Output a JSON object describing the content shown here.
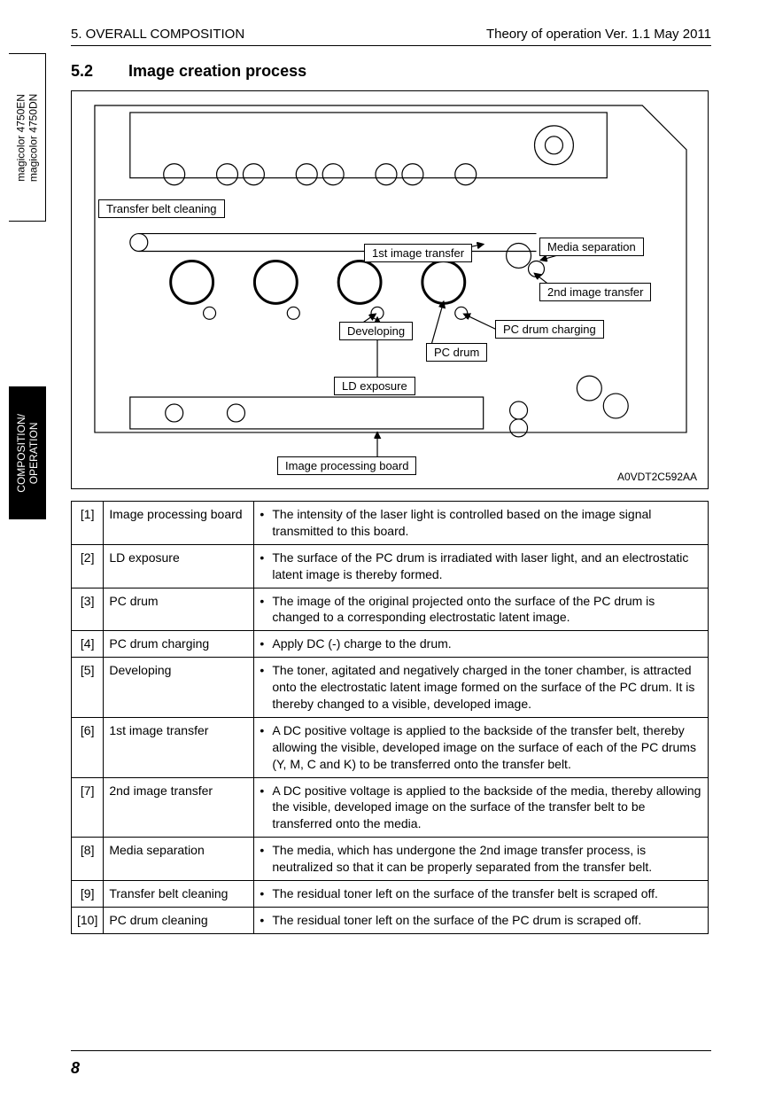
{
  "header": {
    "left": "5. OVERALL COMPOSITION",
    "right": "Theory of operation Ver. 1.1 May 2011"
  },
  "side_tabs": {
    "top_line1": "magicolor 4750EN",
    "top_line2": "magicolor 4750DN",
    "bottom_line1": "COMPOSITION/",
    "bottom_line2": "OPERATION"
  },
  "section": {
    "number": "5.2",
    "title": "Image creation process"
  },
  "diagram": {
    "code": "A0VDT2C592AA",
    "callouts": {
      "transfer_belt_cleaning": "Transfer belt cleaning",
      "first_image_transfer": "1st image transfer",
      "media_separation": "Media separation",
      "second_image_transfer": "2nd image transfer",
      "developing": "Developing",
      "pc_drum_charging": "PC drum charging",
      "pc_drum": "PC drum",
      "ld_exposure": "LD exposure",
      "image_processing_board": "Image processing board"
    },
    "line_color": "#000000",
    "background_color": "#ffffff"
  },
  "table": {
    "rows": [
      {
        "idx": "[1]",
        "name": "Image processing board",
        "desc": "The intensity of the laser light is controlled based on the image signal transmitted to this board."
      },
      {
        "idx": "[2]",
        "name": "LD exposure",
        "desc": "The surface of the PC drum is irradiated with laser light, and an electrostatic latent image is thereby formed."
      },
      {
        "idx": "[3]",
        "name": "PC drum",
        "desc": "The image of the original projected onto the surface of the PC drum is changed to a corresponding electrostatic latent image."
      },
      {
        "idx": "[4]",
        "name": "PC drum charging",
        "desc": "Apply DC (-) charge to the drum."
      },
      {
        "idx": "[5]",
        "name": "Developing",
        "desc": "The toner, agitated and negatively charged in the toner chamber, is attracted onto the electrostatic latent image formed on the surface of the PC drum. It is thereby changed to a visible, developed image."
      },
      {
        "idx": "[6]",
        "name": "1st image transfer",
        "desc": "A DC positive voltage is applied to the backside of the transfer belt, thereby allowing the visible, developed image on the surface of each of the PC drums (Y, M, C and K) to be transferred onto the transfer belt."
      },
      {
        "idx": "[7]",
        "name": "2nd image transfer",
        "desc": "A DC positive voltage is applied to the backside of the media, thereby allowing the visible, developed image on the surface of the transfer belt to be transferred onto the media."
      },
      {
        "idx": "[8]",
        "name": "Media separation",
        "desc": "The media, which has undergone the 2nd image transfer process, is neutralized so that it can be properly separated from the transfer belt."
      },
      {
        "idx": "[9]",
        "name": "Transfer belt cleaning",
        "desc": "The residual toner left on the surface of the transfer belt is scraped off."
      },
      {
        "idx": "[10]",
        "name": "PC drum cleaning",
        "desc": "The residual toner left on the surface of the PC drum is scraped off."
      }
    ]
  },
  "page_number": "8"
}
